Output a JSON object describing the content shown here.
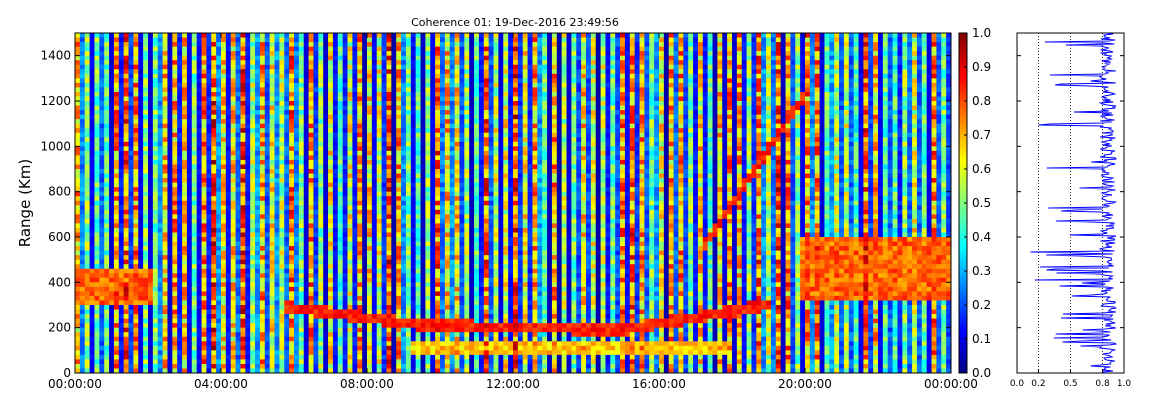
{
  "chart_data": [
    {
      "type": "heatmap",
      "title": "Coherence 01: 19-Dec-2016 23:49:56",
      "xlabel": "",
      "ylabel": "Range (Km)",
      "x_tick_labels": [
        "00:00:00",
        "04:00:00",
        "08:00:00",
        "12:00:00",
        "16:00:00",
        "20:00:00",
        "00:00:00"
      ],
      "x_range_hours": [
        0,
        24
      ],
      "y_ticks": [
        0,
        200,
        400,
        600,
        800,
        1000,
        1200,
        1400
      ],
      "ylim": [
        0,
        1500
      ],
      "colorbar": {
        "colormap": "jet",
        "range": [
          0.0,
          1.0
        ],
        "tick_labels": [
          "0.0",
          "0.1",
          "0.2",
          "0.3",
          "0.4",
          "0.5",
          "0.6",
          "0.7",
          "0.8",
          "0.9",
          "1.0"
        ]
      },
      "features": [
        {
          "name": "high coherence layer",
          "x_hours": [
            0,
            2.1
          ],
          "range_km": [
            300,
            450
          ],
          "value": 0.85
        },
        {
          "name": "high coherence layer",
          "x_hours": [
            19.8,
            24
          ],
          "range_km": [
            330,
            600
          ],
          "value": 0.85
        },
        {
          "name": "band",
          "x_hours": [
            9.2,
            18
          ],
          "range_km": [
            90,
            130
          ],
          "value": 0.75
        },
        {
          "name": "trace",
          "x_hours": [
            5.8,
            9.5
          ],
          "range_km_start": 290,
          "range_km_end": 210
        },
        {
          "name": "trace",
          "x_hours": [
            9.5,
            15.0
          ],
          "range_km_start": 210,
          "range_km_end": 190
        },
        {
          "name": "trace",
          "x_hours": [
            15.0,
            19.0
          ],
          "range_km_start": 190,
          "range_km_end": 300
        },
        {
          "name": "trace",
          "x_hours": [
            17.2,
            20.0
          ],
          "range_km_start": 550,
          "range_km_end": 1230
        }
      ],
      "grid": false
    },
    {
      "type": "line",
      "xlabel": "",
      "ylabel": "",
      "xlim": [
        0,
        1.0
      ],
      "x_tick_labels": [
        "0.0",
        "0.2",
        "0.5",
        "0.8",
        "1.0"
      ],
      "ylim": [
        0,
        1500
      ],
      "mean_value": 0.85,
      "grid": "vertical dotted"
    }
  ]
}
